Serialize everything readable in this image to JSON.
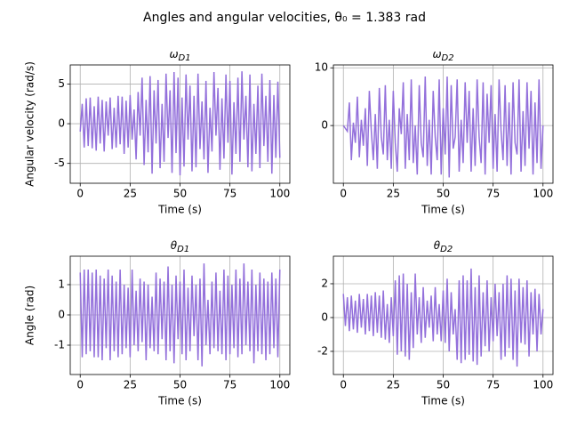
{
  "title": "Angles and angular velocities, θ₀  = 1.383 rad",
  "chart_data": [
    {
      "type": "line",
      "title": "ωD1",
      "xlabel": "Time (s)",
      "ylabel": "Angular velocity (rad/s)",
      "x": [
        0,
        1,
        2,
        3,
        4,
        5,
        6,
        7,
        8,
        9,
        10,
        11,
        12,
        13,
        14,
        15,
        16,
        17,
        18,
        19,
        20,
        21,
        22,
        23,
        24,
        25,
        26,
        27,
        28,
        29,
        30,
        31,
        32,
        33,
        34,
        35,
        36,
        37,
        38,
        39,
        40,
        41,
        42,
        43,
        44,
        45,
        46,
        47,
        48,
        49,
        50,
        51,
        52,
        53,
        54,
        55,
        56,
        57,
        58,
        59,
        60,
        61,
        62,
        63,
        64,
        65,
        66,
        67,
        68,
        69,
        70,
        71,
        72,
        73,
        74,
        75,
        76,
        77,
        78,
        79,
        80,
        81,
        82,
        83,
        84,
        85,
        86,
        87,
        88,
        89,
        90,
        91,
        92,
        93,
        94,
        95,
        96,
        97,
        98,
        99,
        100
      ],
      "series": [
        {
          "color": "#9370db",
          "values": [
            -1,
            2.5,
            -3,
            3.2,
            -2.8,
            3.3,
            -3.1,
            2.2,
            -3.4,
            3.4,
            -2.5,
            3,
            -3.5,
            2.8,
            -1.5,
            3.3,
            -3.2,
            2,
            -3,
            3.5,
            -2.6,
            3.4,
            -3.8,
            2.9,
            -3,
            3.6,
            -2,
            1.8,
            -4.5,
            4,
            -1.5,
            5.8,
            -5.2,
            3,
            -3.6,
            6,
            -6.3,
            4.2,
            -2.5,
            5.5,
            -5.6,
            2.5,
            -4.8,
            6.3,
            -1.8,
            4.2,
            -6.2,
            6.5,
            -3.7,
            5.8,
            -6.5,
            3.3,
            -5.4,
            6.2,
            -2,
            4.8,
            -6,
            3.5,
            -5.5,
            6.3,
            -3.2,
            2.8,
            -4.5,
            5.4,
            -6.2,
            2,
            -3.5,
            6.5,
            -1.5,
            4.5,
            -5.8,
            3.2,
            -4.4,
            6.2,
            -2.4,
            5.4,
            -6.4,
            2.7,
            -3.8,
            5.8,
            -4.8,
            6.6,
            -2,
            3.5,
            -5.5,
            6.2,
            -6,
            2.5,
            -3.8,
            4.8,
            -5.6,
            6.3,
            -2.8,
            3.5,
            -4.8,
            5.5,
            -6.3,
            3.6,
            -4.3,
            5.3,
            -4.3
          ]
        }
      ],
      "xlim": [
        -5,
        105
      ],
      "ylim": [
        -7.5,
        7.4
      ],
      "xticks": [
        0,
        25,
        50,
        75,
        100
      ],
      "yticks": [
        -5,
        0,
        5
      ],
      "grid": true
    },
    {
      "type": "line",
      "title": "ωD2",
      "xlabel": "Time (s)",
      "x": [
        0,
        1,
        2,
        3,
        4,
        5,
        6,
        7,
        8,
        9,
        10,
        11,
        12,
        13,
        14,
        15,
        16,
        17,
        18,
        19,
        20,
        21,
        22,
        23,
        24,
        25,
        26,
        27,
        28,
        29,
        30,
        31,
        32,
        33,
        34,
        35,
        36,
        37,
        38,
        39,
        40,
        41,
        42,
        43,
        44,
        45,
        46,
        47,
        48,
        49,
        50,
        51,
        52,
        53,
        54,
        55,
        56,
        57,
        58,
        59,
        60,
        61,
        62,
        63,
        64,
        65,
        66,
        67,
        68,
        69,
        70,
        71,
        72,
        73,
        74,
        75,
        76,
        77,
        78,
        79,
        80,
        81,
        82,
        83,
        84,
        85,
        86,
        87,
        88,
        89,
        90,
        91,
        92,
        93,
        94,
        95,
        96,
        97,
        98,
        99,
        100
      ],
      "series": [
        {
          "color": "#9370db",
          "values": [
            0,
            -0.5,
            -1,
            4,
            -6,
            0.5,
            -3,
            5,
            -5.5,
            1,
            -3.5,
            3,
            -7,
            6,
            -1,
            -6,
            2,
            -7.5,
            6.5,
            -2,
            -5,
            7,
            -6,
            1,
            -7.5,
            6,
            -3,
            -8,
            3,
            -1.5,
            7.5,
            -7.5,
            2,
            -6,
            8,
            -6.5,
            0,
            -8.5,
            7,
            -3,
            -5.5,
            8.5,
            -7,
            1,
            -8.5,
            6,
            -2,
            -6,
            8,
            -8.5,
            3,
            -5,
            8.5,
            -9,
            7,
            -4,
            -2,
            8,
            -8,
            1,
            -6.5,
            7.5,
            -3,
            6,
            -8,
            3,
            -7,
            8,
            -2,
            -6.5,
            7.5,
            -8.5,
            5.5,
            -3,
            7,
            -7.5,
            2,
            -8,
            8,
            -1,
            -6,
            7,
            -7,
            4,
            -8.5,
            7.5,
            -3,
            -5,
            8,
            -8,
            2.5,
            -7,
            7.5,
            -4,
            6,
            -8.5,
            4,
            -6.5,
            8,
            -7.5,
            0
          ]
        }
      ],
      "xlim": [
        -5,
        105
      ],
      "ylim": [
        -10,
        10.5
      ],
      "xticks": [
        0,
        25,
        50,
        75,
        100
      ],
      "yticks": [
        0,
        10
      ],
      "grid": true
    },
    {
      "type": "line",
      "title": "θD1",
      "xlabel": "Time (s)",
      "ylabel": "Angle (rad)",
      "x": [
        0,
        1,
        2,
        3,
        4,
        5,
        6,
        7,
        8,
        9,
        10,
        11,
        12,
        13,
        14,
        15,
        16,
        17,
        18,
        19,
        20,
        21,
        22,
        23,
        24,
        25,
        26,
        27,
        28,
        29,
        30,
        31,
        32,
        33,
        34,
        35,
        36,
        37,
        38,
        39,
        40,
        41,
        42,
        43,
        44,
        45,
        46,
        47,
        48,
        49,
        50,
        51,
        52,
        53,
        54,
        55,
        56,
        57,
        58,
        59,
        60,
        61,
        62,
        63,
        64,
        65,
        66,
        67,
        68,
        69,
        70,
        71,
        72,
        73,
        74,
        75,
        76,
        77,
        78,
        79,
        80,
        81,
        82,
        83,
        84,
        85,
        86,
        87,
        88,
        89,
        90,
        91,
        92,
        93,
        94,
        95,
        96,
        97,
        98,
        99,
        100
      ],
      "series": [
        {
          "color": "#9370db",
          "values": [
            1.4,
            -1.4,
            1.5,
            -1.3,
            1.5,
            -1.2,
            1.4,
            -1.4,
            1.5,
            -1.4,
            1.3,
            -1.5,
            1.2,
            -1.1,
            1.5,
            -1.5,
            1.3,
            -1.2,
            1.1,
            -1.4,
            1.5,
            -1.3,
            1,
            -1.1,
            0.9,
            -1.4,
            1.5,
            -1,
            0.8,
            -1.2,
            1.2,
            -0.9,
            1.1,
            -1.5,
            1,
            -1.1,
            0.6,
            -1.2,
            1.4,
            -1.3,
            1.2,
            -0.8,
            1.1,
            -1.5,
            1.6,
            -1.2,
            1,
            -1.6,
            1.3,
            -0.8,
            1.1,
            -1.3,
            1.5,
            -1.5,
            0.9,
            -1.2,
            1.3,
            -0.7,
            1,
            -1.5,
            1.2,
            -1.7,
            1.7,
            -1,
            0.5,
            -1.3,
            1.1,
            -1.1,
            1.4,
            -1.2,
            0.8,
            -1.3,
            1.5,
            -1.5,
            1.3,
            -1.3,
            1,
            -1.1,
            1.5,
            -1.4,
            1.2,
            -1.3,
            1.7,
            -1,
            1.1,
            -1.2,
            1.5,
            -1.6,
            1,
            -1.2,
            1.4,
            -1.3,
            1.2,
            -1.5,
            1.1,
            -1.3,
            1.4,
            -1.1,
            1.2,
            -1.4,
            1.5
          ]
        }
      ],
      "xlim": [
        -5,
        105
      ],
      "ylim": [
        -1.97,
        1.94
      ],
      "xticks": [
        0,
        25,
        50,
        75,
        100
      ],
      "yticks": [
        -1,
        0,
        1
      ],
      "grid": true
    },
    {
      "type": "line",
      "title": "θD2",
      "xlabel": "Time (s)",
      "x": [
        0,
        1,
        2,
        3,
        4,
        5,
        6,
        7,
        8,
        9,
        10,
        11,
        12,
        13,
        14,
        15,
        16,
        17,
        18,
        19,
        20,
        21,
        22,
        23,
        24,
        25,
        26,
        27,
        28,
        29,
        30,
        31,
        32,
        33,
        34,
        35,
        36,
        37,
        38,
        39,
        40,
        41,
        42,
        43,
        44,
        45,
        46,
        47,
        48,
        49,
        50,
        51,
        52,
        53,
        54,
        55,
        56,
        57,
        58,
        59,
        60,
        61,
        62,
        63,
        64,
        65,
        66,
        67,
        68,
        69,
        70,
        71,
        72,
        73,
        74,
        75,
        76,
        77,
        78,
        79,
        80,
        81,
        82,
        83,
        84,
        85,
        86,
        87,
        88,
        89,
        90,
        91,
        92,
        93,
        94,
        95,
        96,
        97,
        98,
        99,
        100
      ],
      "series": [
        {
          "color": "#9370db",
          "values": [
            1.4,
            -0.5,
            1.2,
            -0.8,
            1.3,
            -0.7,
            1,
            -0.9,
            1.4,
            -0.6,
            1.1,
            -1,
            1.4,
            -0.8,
            1.3,
            -1.1,
            1.5,
            -0.9,
            1.3,
            -1.2,
            1.6,
            -1.3,
            0.8,
            -1.5,
            1.2,
            -1.1,
            2.2,
            -2.2,
            2.5,
            -2,
            2.6,
            -2.3,
            2,
            -2.5,
            1.5,
            -1.8,
            2.6,
            -1,
            1.2,
            -1.5,
            1.8,
            -1.2,
            1,
            -0.6,
            1.3,
            -1.4,
            1.8,
            -1,
            0.8,
            -1.4,
            1.6,
            -1.5,
            2.3,
            -2,
            1.5,
            -1,
            0.5,
            -2.5,
            2.2,
            -2.7,
            2.5,
            -2.5,
            2.2,
            -2.2,
            2.9,
            -2.6,
            1.8,
            -2.8,
            2.5,
            -2.3,
            1.5,
            -1.7,
            2.2,
            -2,
            1.2,
            -1.4,
            2,
            -1.1,
            1.5,
            -2.5,
            2,
            -2.3,
            2.5,
            -1.8,
            2.3,
            -2.5,
            1.6,
            -2.9,
            2.3,
            -1.5,
            1.8,
            -1.6,
            2.2,
            -2.3,
            1.5,
            -1,
            1.7,
            -2,
            1.4,
            -1,
            0.5
          ]
        }
      ],
      "xlim": [
        -5,
        105
      ],
      "ylim": [
        -3.37,
        3.63
      ],
      "xticks": [
        0,
        25,
        50,
        75,
        100
      ],
      "yticks": [
        -2,
        0,
        2
      ],
      "grid": true
    }
  ]
}
